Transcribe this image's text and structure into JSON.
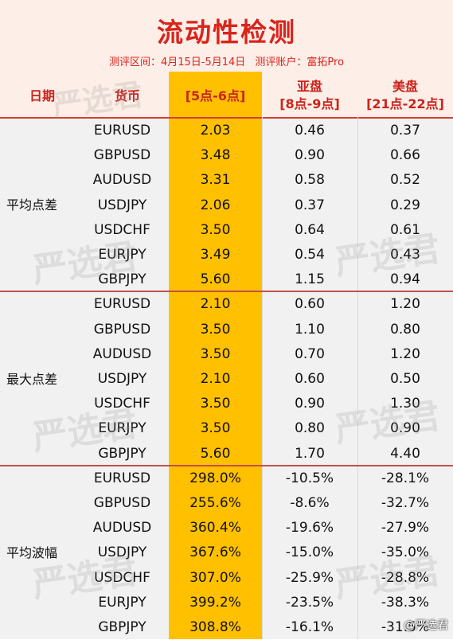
{
  "title": "流动性检测",
  "subtitle": {
    "period_label": "测评区间：4月15日-5月14日",
    "account_label": "测评账户：富拓Pro"
  },
  "columns": {
    "date": "日期",
    "currency": "货币",
    "session1": "[5点-6点]",
    "session2_name": "亚盘",
    "session2_time": "[8点-9点]",
    "session3_name": "美盘",
    "session3_time": "[21点-22点]"
  },
  "groups": [
    {
      "label": "平均点差",
      "rows": [
        {
          "pair": "EURUSD",
          "v1": "2.03",
          "v2": "0.46",
          "v3": "0.37"
        },
        {
          "pair": "GBPUSD",
          "v1": "3.48",
          "v2": "0.90",
          "v3": "0.66"
        },
        {
          "pair": "AUDUSD",
          "v1": "3.31",
          "v2": "0.58",
          "v3": "0.52"
        },
        {
          "pair": "USDJPY",
          "v1": "2.06",
          "v2": "0.37",
          "v3": "0.29"
        },
        {
          "pair": "USDCHF",
          "v1": "3.50",
          "v2": "0.64",
          "v3": "0.61"
        },
        {
          "pair": "EURJPY",
          "v1": "3.49",
          "v2": "0.54",
          "v3": "0.43"
        },
        {
          "pair": "GBPJPY",
          "v1": "5.60",
          "v2": "1.15",
          "v3": "0.94"
        }
      ]
    },
    {
      "label": "最大点差",
      "rows": [
        {
          "pair": "EURUSD",
          "v1": "2.10",
          "v2": "0.60",
          "v3": "1.20"
        },
        {
          "pair": "GBPUSD",
          "v1": "3.50",
          "v2": "1.10",
          "v3": "0.80"
        },
        {
          "pair": "AUDUSD",
          "v1": "3.50",
          "v2": "0.70",
          "v3": "1.20"
        },
        {
          "pair": "USDJPY",
          "v1": "2.10",
          "v2": "0.60",
          "v3": "0.50"
        },
        {
          "pair": "USDCHF",
          "v1": "3.50",
          "v2": "0.90",
          "v3": "1.30"
        },
        {
          "pair": "EURJPY",
          "v1": "3.50",
          "v2": "0.80",
          "v3": "0.90"
        },
        {
          "pair": "GBPJPY",
          "v1": "5.60",
          "v2": "1.70",
          "v3": "4.40"
        }
      ]
    },
    {
      "label": "平均波幅",
      "rows": [
        {
          "pair": "EURUSD",
          "v1": "298.0%",
          "v2": "-10.5%",
          "v3": "-28.1%"
        },
        {
          "pair": "GBPUSD",
          "v1": "255.6%",
          "v2": "-8.6%",
          "v3": "-32.7%"
        },
        {
          "pair": "AUDUSD",
          "v1": "360.4%",
          "v2": "-19.6%",
          "v3": "-27.9%"
        },
        {
          "pair": "USDJPY",
          "v1": "367.6%",
          "v2": "-15.0%",
          "v3": "-35.0%"
        },
        {
          "pair": "USDCHF",
          "v1": "307.0%",
          "v2": "-25.9%",
          "v3": "-28.8%"
        },
        {
          "pair": "EURJPY",
          "v1": "399.2%",
          "v2": "-23.5%",
          "v3": "-38.3%"
        },
        {
          "pair": "GBPJPY",
          "v1": "308.8%",
          "v2": "-16.1%",
          "v3": "-31.5%"
        }
      ]
    }
  ],
  "watermark": "严选君",
  "weibo_mark": "@严选君",
  "colors": {
    "accent_red": "#d9241c",
    "highlight_column": "#ffc000",
    "header_bg": "#fdeee7",
    "table_bg": "#f1f1f1"
  }
}
